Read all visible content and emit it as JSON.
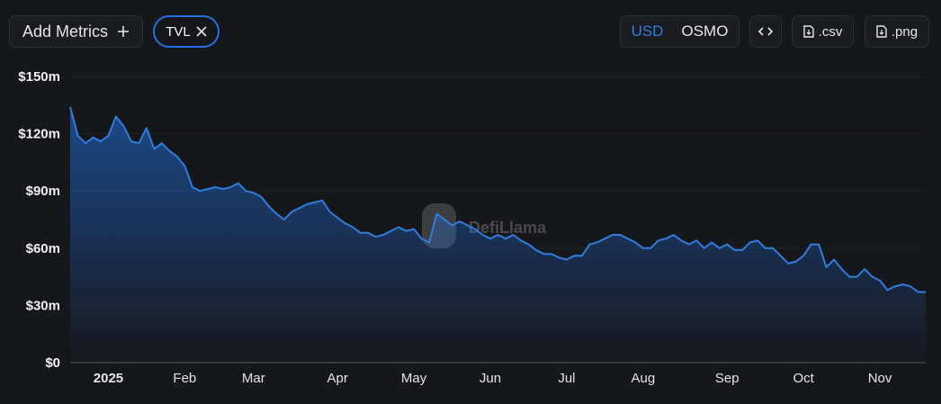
{
  "toolbar": {
    "add_metrics": "Add Metrics",
    "metric_tag": "TVL",
    "currency_options": [
      "USD",
      "OSMO"
    ],
    "csv": ".csv",
    "png": ".png"
  },
  "watermark": "DefiLlama",
  "chart_data": {
    "type": "area",
    "color": "#2f7de1",
    "grid": true,
    "categories": [
      null,
      null,
      null,
      null,
      null,
      "2025",
      null,
      null,
      null,
      null,
      null,
      null,
      null,
      null,
      null,
      "Feb",
      null,
      null,
      null,
      null,
      null,
      null,
      null,
      null,
      "Mar",
      null,
      null,
      null,
      null,
      null,
      null,
      null,
      null,
      null,
      null,
      "Apr",
      null,
      null,
      null,
      null,
      null,
      null,
      null,
      null,
      null,
      "May",
      null,
      null,
      null,
      null,
      null,
      null,
      null,
      null,
      null,
      "Jun",
      null,
      null,
      null,
      null,
      null,
      null,
      null,
      null,
      null,
      "Jul",
      null,
      null,
      null,
      null,
      null,
      null,
      null,
      null,
      null,
      "Aug",
      null,
      null,
      null,
      null,
      null,
      null,
      null,
      null,
      null,
      null,
      "Sep",
      null,
      null,
      null,
      null,
      null,
      null,
      null,
      null,
      null,
      "Oct",
      null,
      null,
      null,
      null,
      null,
      null,
      null,
      null,
      null,
      "Nov",
      null,
      null,
      null,
      null,
      null,
      null
    ],
    "values": [
      134,
      119,
      115,
      118,
      116,
      119,
      129,
      124,
      116,
      115,
      123,
      112,
      115,
      111,
      108,
      103,
      92,
      90,
      91,
      92,
      91,
      92,
      94,
      90,
      89,
      87,
      82,
      78,
      75,
      79,
      81,
      83,
      84,
      85,
      79,
      76,
      73,
      71,
      68,
      68,
      66,
      67,
      69,
      71,
      69,
      70,
      65,
      63,
      78,
      75,
      72,
      74,
      72,
      70,
      67,
      65,
      67,
      65,
      67,
      64,
      62,
      59,
      57,
      57,
      55,
      54,
      56,
      56,
      62,
      63,
      65,
      67,
      67,
      65,
      63,
      60,
      60,
      64,
      65,
      67,
      64,
      62,
      64,
      60,
      63,
      60,
      62,
      59,
      59,
      63,
      64,
      60,
      60,
      56,
      52,
      53,
      56,
      62,
      62,
      50,
      54,
      49,
      45,
      45,
      49,
      45,
      43,
      38,
      40,
      41,
      40,
      37,
      37
    ],
    "ylim": [
      0,
      150
    ],
    "yticks": [
      {
        "value": 0,
        "label": "$0"
      },
      {
        "value": 30,
        "label": "$30m"
      },
      {
        "value": 60,
        "label": "$60m"
      },
      {
        "value": 90,
        "label": "$90m"
      },
      {
        "value": 120,
        "label": "$120m"
      },
      {
        "value": 150,
        "label": "$150m"
      }
    ]
  }
}
